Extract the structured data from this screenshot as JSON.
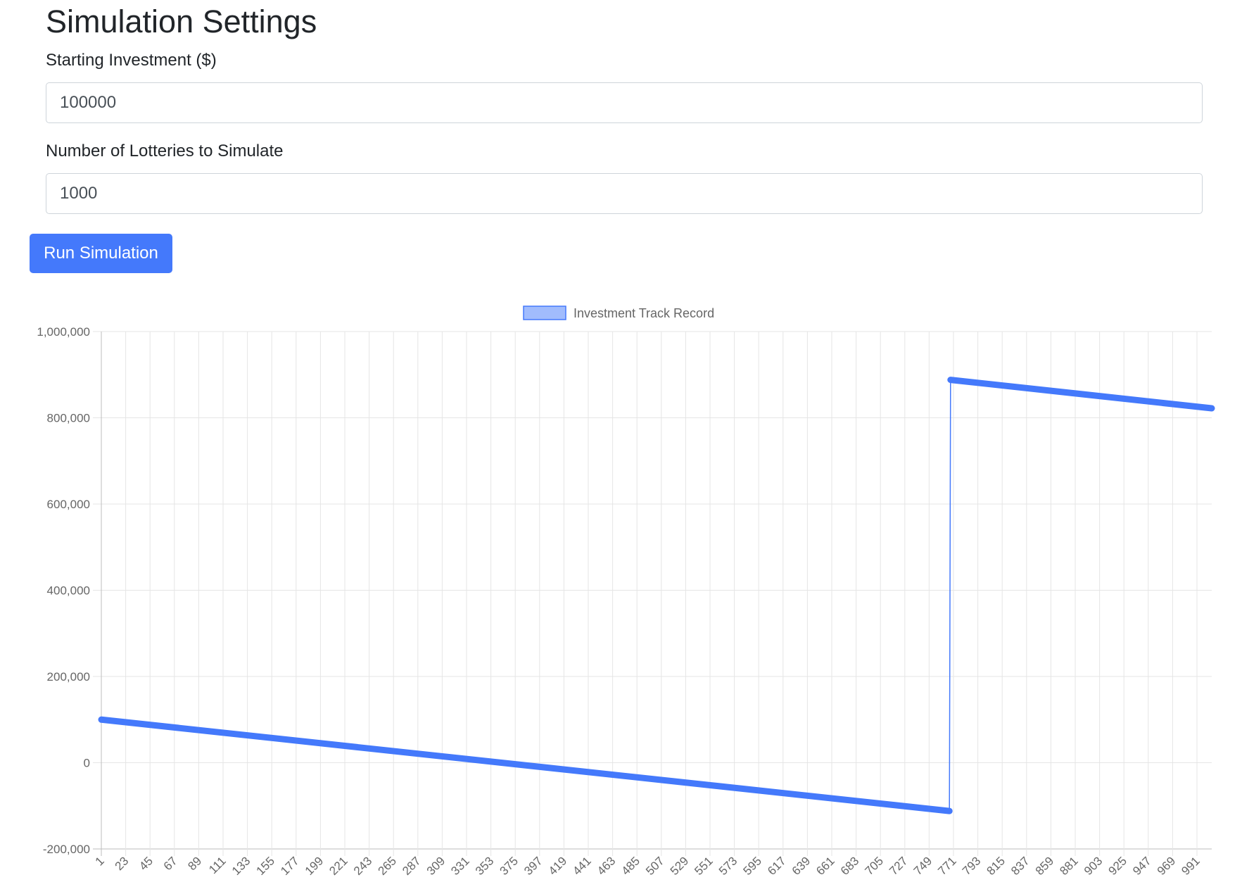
{
  "settings": {
    "title": "Simulation Settings",
    "starting_investment": {
      "label": "Starting Investment ($)",
      "value": "100000"
    },
    "num_lotteries": {
      "label": "Number of Lotteries to Simulate",
      "value": "1000"
    },
    "run_label": "Run Simulation"
  },
  "chart_data": {
    "type": "line",
    "legend": {
      "label": "Investment Track Record",
      "position": "top"
    },
    "x_tick_labels": [
      "1",
      "23",
      "45",
      "67",
      "89",
      "111",
      "133",
      "155",
      "177",
      "199",
      "221",
      "243",
      "265",
      "287",
      "309",
      "331",
      "353",
      "375",
      "397",
      "419",
      "441",
      "463",
      "485",
      "507",
      "529",
      "551",
      "573",
      "595",
      "617",
      "639",
      "661",
      "683",
      "705",
      "727",
      "749",
      "771",
      "793",
      "815",
      "837",
      "859",
      "881",
      "903",
      "925",
      "947",
      "969",
      "991"
    ],
    "y_ticks": [
      -200000,
      0,
      200000,
      400000,
      600000,
      800000,
      1000000
    ],
    "y_tick_labels": [
      "-200,000",
      "0",
      "200,000",
      "400,000",
      "600,000",
      "800,000",
      "1,000,000"
    ],
    "ylim": [
      -200000,
      1000000
    ],
    "xlim": [
      1,
      1000
    ],
    "grid": true,
    "series": [
      {
        "color": "#4479fb",
        "points": [
          {
            "x": 1,
            "y": 100000
          },
          {
            "x": 764,
            "y": -112000
          },
          {
            "x": 765,
            "y": 888000
          },
          {
            "x": 1000,
            "y": 822000
          }
        ]
      }
    ]
  }
}
